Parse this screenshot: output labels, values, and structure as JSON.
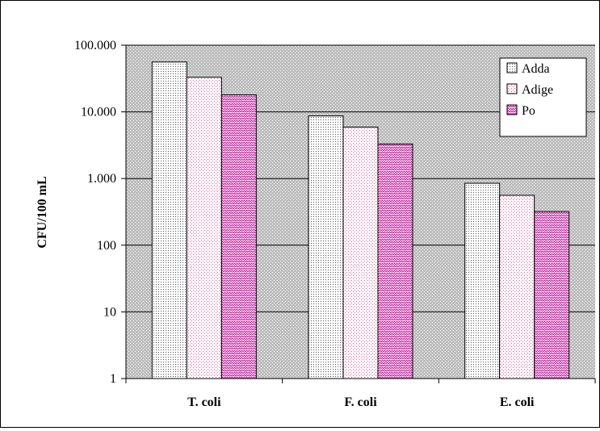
{
  "chart_data": {
    "type": "bar",
    "scale": "log",
    "ylabel": "CFU/100 mL",
    "xlabel": "",
    "categories": [
      "T. coli",
      "F. coli",
      "E. coli"
    ],
    "ylim": [
      1,
      100000
    ],
    "yticks": [
      {
        "value": 1,
        "label": "1"
      },
      {
        "value": 10,
        "label": "10"
      },
      {
        "value": 100,
        "label": "100"
      },
      {
        "value": 1000,
        "label": "1.000"
      },
      {
        "value": 10000,
        "label": "10.000"
      },
      {
        "value": 100000,
        "label": "100.000"
      }
    ],
    "series": [
      {
        "name": "Adda",
        "values": [
          56000,
          8700,
          850
        ],
        "pattern": "dots"
      },
      {
        "name": "Adige",
        "values": [
          33000,
          5900,
          560
        ],
        "pattern": "pink-dots"
      },
      {
        "name": "Po",
        "values": [
          18000,
          3300,
          320
        ],
        "pattern": "zigzag"
      }
    ],
    "grid": true,
    "legend": "top-right",
    "colors": {
      "plot_bg": "#c0c0c0",
      "pink": "#e0579b",
      "magenta": "#c2189b",
      "grid": "#000000"
    }
  }
}
